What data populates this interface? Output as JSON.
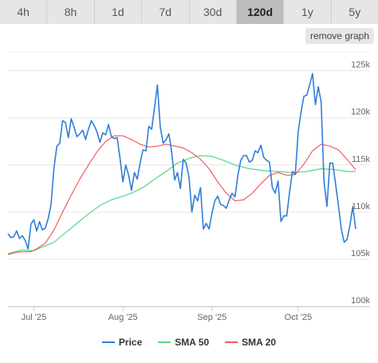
{
  "tabs": [
    {
      "label": "4h",
      "active": false
    },
    {
      "label": "8h",
      "active": false
    },
    {
      "label": "1d",
      "active": false
    },
    {
      "label": "7d",
      "active": false
    },
    {
      "label": "30d",
      "active": false
    },
    {
      "label": "120d",
      "active": true
    },
    {
      "label": "1y",
      "active": false
    },
    {
      "label": "5y",
      "active": false
    }
  ],
  "remove_graph_label": "remove graph",
  "colors": {
    "price": "#2f7ed8",
    "sma50": "#55d68a",
    "sma20": "#f45b5b"
  },
  "chart_data": {
    "type": "line",
    "title": "",
    "xlabel": "",
    "ylabel": "",
    "ylim": [
      100000,
      127000
    ],
    "xlim": [
      "2025-06-22",
      "2025-10-26"
    ],
    "yticks": [
      100000,
      105000,
      110000,
      115000,
      120000,
      125000
    ],
    "ytick_labels": [
      "100k",
      "105k",
      "110k",
      "115k",
      "120k",
      "125k"
    ],
    "xticks": [
      "2025-07-01",
      "2025-08-01",
      "2025-09-01",
      "2025-10-01"
    ],
    "xtick_labels": [
      "Jul '25",
      "Aug '25",
      "Sep '25",
      "Oct '25"
    ],
    "grid": true,
    "legend": "bottom-center",
    "series": [
      {
        "name": "Price",
        "color": "#2f7ed8",
        "points": [
          [
            "2025-06-22",
            107700
          ],
          [
            "2025-06-23",
            107300
          ],
          [
            "2025-06-24",
            107400
          ],
          [
            "2025-06-25",
            108000
          ],
          [
            "2025-06-26",
            107200
          ],
          [
            "2025-06-27",
            107500
          ],
          [
            "2025-06-28",
            107000
          ],
          [
            "2025-06-29",
            106100
          ],
          [
            "2025-06-30",
            108700
          ],
          [
            "2025-07-01",
            109200
          ],
          [
            "2025-07-02",
            108000
          ],
          [
            "2025-07-03",
            109000
          ],
          [
            "2025-07-04",
            108100
          ],
          [
            "2025-07-05",
            108300
          ],
          [
            "2025-07-06",
            109300
          ],
          [
            "2025-07-07",
            110800
          ],
          [
            "2025-07-08",
            114700
          ],
          [
            "2025-07-09",
            117000
          ],
          [
            "2025-07-10",
            117300
          ],
          [
            "2025-07-11",
            119700
          ],
          [
            "2025-07-12",
            119500
          ],
          [
            "2025-07-13",
            117900
          ],
          [
            "2025-07-14",
            119900
          ],
          [
            "2025-07-15",
            119000
          ],
          [
            "2025-07-16",
            118000
          ],
          [
            "2025-07-17",
            118300
          ],
          [
            "2025-07-18",
            118700
          ],
          [
            "2025-07-19",
            117700
          ],
          [
            "2025-07-20",
            118800
          ],
          [
            "2025-07-21",
            119700
          ],
          [
            "2025-07-22",
            119200
          ],
          [
            "2025-07-23",
            118500
          ],
          [
            "2025-07-24",
            117400
          ],
          [
            "2025-07-25",
            118400
          ],
          [
            "2025-07-26",
            118200
          ],
          [
            "2025-07-27",
            119300
          ],
          [
            "2025-07-28",
            118000
          ],
          [
            "2025-07-29",
            117800
          ],
          [
            "2025-07-30",
            117900
          ],
          [
            "2025-07-31",
            115700
          ],
          [
            "2025-08-01",
            113200
          ],
          [
            "2025-08-02",
            115000
          ],
          [
            "2025-08-03",
            113900
          ],
          [
            "2025-08-04",
            112300
          ],
          [
            "2025-08-05",
            114200
          ],
          [
            "2025-08-06",
            113500
          ],
          [
            "2025-08-07",
            115200
          ],
          [
            "2025-08-08",
            116600
          ],
          [
            "2025-08-09",
            116500
          ],
          [
            "2025-08-10",
            119100
          ],
          [
            "2025-08-11",
            118800
          ],
          [
            "2025-08-12",
            121100
          ],
          [
            "2025-08-13",
            123500
          ],
          [
            "2025-08-14",
            119000
          ],
          [
            "2025-08-15",
            117300
          ],
          [
            "2025-08-16",
            117700
          ],
          [
            "2025-08-17",
            118300
          ],
          [
            "2025-08-18",
            116300
          ],
          [
            "2025-08-19",
            113400
          ],
          [
            "2025-08-20",
            114200
          ],
          [
            "2025-08-21",
            112500
          ],
          [
            "2025-08-22",
            115600
          ],
          [
            "2025-08-23",
            115200
          ],
          [
            "2025-08-24",
            113700
          ],
          [
            "2025-08-25",
            110000
          ],
          [
            "2025-08-26",
            111800
          ],
          [
            "2025-08-27",
            111200
          ],
          [
            "2025-08-28",
            112600
          ],
          [
            "2025-08-29",
            108200
          ],
          [
            "2025-08-30",
            108800
          ],
          [
            "2025-08-31",
            108200
          ],
          [
            "2025-09-01",
            109900
          ],
          [
            "2025-09-02",
            111200
          ],
          [
            "2025-09-03",
            111700
          ],
          [
            "2025-09-04",
            110800
          ],
          [
            "2025-09-05",
            110700
          ],
          [
            "2025-09-06",
            110400
          ],
          [
            "2025-09-07",
            111300
          ],
          [
            "2025-09-08",
            112000
          ],
          [
            "2025-09-09",
            111600
          ],
          [
            "2025-09-10",
            113900
          ],
          [
            "2025-09-11",
            115500
          ],
          [
            "2025-09-12",
            116000
          ],
          [
            "2025-09-13",
            116000
          ],
          [
            "2025-09-14",
            115300
          ],
          [
            "2025-09-15",
            115500
          ],
          [
            "2025-09-16",
            116500
          ],
          [
            "2025-09-17",
            116300
          ],
          [
            "2025-09-18",
            117100
          ],
          [
            "2025-09-19",
            115800
          ],
          [
            "2025-09-20",
            115500
          ],
          [
            "2025-09-21",
            115300
          ],
          [
            "2025-09-22",
            112600
          ],
          [
            "2025-09-23",
            112000
          ],
          [
            "2025-09-24",
            113300
          ],
          [
            "2025-09-25",
            109000
          ],
          [
            "2025-09-26",
            109600
          ],
          [
            "2025-09-27",
            109600
          ],
          [
            "2025-09-28",
            112100
          ],
          [
            "2025-09-29",
            114300
          ],
          [
            "2025-09-30",
            114000
          ],
          [
            "2025-10-01",
            118500
          ],
          [
            "2025-10-02",
            120600
          ],
          [
            "2025-10-03",
            122300
          ],
          [
            "2025-10-04",
            122400
          ],
          [
            "2025-10-05",
            123500
          ],
          [
            "2025-10-06",
            124700
          ],
          [
            "2025-10-07",
            121400
          ],
          [
            "2025-10-08",
            123300
          ],
          [
            "2025-10-09",
            121700
          ],
          [
            "2025-10-10",
            113200
          ],
          [
            "2025-10-11",
            110600
          ],
          [
            "2025-10-12",
            115200
          ],
          [
            "2025-10-13",
            115200
          ],
          [
            "2025-10-14",
            113000
          ],
          [
            "2025-10-15",
            110700
          ],
          [
            "2025-10-16",
            108200
          ],
          [
            "2025-10-17",
            106800
          ],
          [
            "2025-10-18",
            107100
          ],
          [
            "2025-10-19",
            108600
          ],
          [
            "2025-10-20",
            110600
          ],
          [
            "2025-10-21",
            108200
          ]
        ]
      },
      {
        "name": "SMA 50",
        "color": "#55d68a",
        "points": [
          [
            "2025-06-22",
            105600
          ],
          [
            "2025-06-27",
            106000
          ],
          [
            "2025-07-01",
            105900
          ],
          [
            "2025-07-04",
            106300
          ],
          [
            "2025-07-08",
            106800
          ],
          [
            "2025-07-12",
            107800
          ],
          [
            "2025-07-16",
            108800
          ],
          [
            "2025-07-20",
            109800
          ],
          [
            "2025-07-24",
            110700
          ],
          [
            "2025-07-28",
            111300
          ],
          [
            "2025-08-01",
            111700
          ],
          [
            "2025-08-04",
            112000
          ],
          [
            "2025-08-08",
            112600
          ],
          [
            "2025-08-12",
            113500
          ],
          [
            "2025-08-16",
            114300
          ],
          [
            "2025-08-20",
            115200
          ],
          [
            "2025-08-24",
            115700
          ],
          [
            "2025-08-28",
            116000
          ],
          [
            "2025-09-01",
            115900
          ],
          [
            "2025-09-05",
            115500
          ],
          [
            "2025-09-09",
            115000
          ],
          [
            "2025-09-14",
            114600
          ],
          [
            "2025-09-19",
            114400
          ],
          [
            "2025-09-24",
            114300
          ],
          [
            "2025-09-29",
            114200
          ],
          [
            "2025-10-04",
            114300
          ],
          [
            "2025-10-09",
            114600
          ],
          [
            "2025-10-14",
            114500
          ],
          [
            "2025-10-18",
            114300
          ],
          [
            "2025-10-21",
            114300
          ]
        ]
      },
      {
        "name": "SMA 20",
        "color": "#f45b5b",
        "points": [
          [
            "2025-06-22",
            105500
          ],
          [
            "2025-06-26",
            105800
          ],
          [
            "2025-06-30",
            105800
          ],
          [
            "2025-07-02",
            106100
          ],
          [
            "2025-07-05",
            106700
          ],
          [
            "2025-07-08",
            108100
          ],
          [
            "2025-07-11",
            110000
          ],
          [
            "2025-07-14",
            111800
          ],
          [
            "2025-07-17",
            113500
          ],
          [
            "2025-07-20",
            115000
          ],
          [
            "2025-07-23",
            116400
          ],
          [
            "2025-07-26",
            117500
          ],
          [
            "2025-07-29",
            118100
          ],
          [
            "2025-08-01",
            118100
          ],
          [
            "2025-08-04",
            117700
          ],
          [
            "2025-08-07",
            117200
          ],
          [
            "2025-08-10",
            116900
          ],
          [
            "2025-08-13",
            117000
          ],
          [
            "2025-08-16",
            117200
          ],
          [
            "2025-08-19",
            117000
          ],
          [
            "2025-08-22",
            116800
          ],
          [
            "2025-08-25",
            116300
          ],
          [
            "2025-08-28",
            115600
          ],
          [
            "2025-08-31",
            114600
          ],
          [
            "2025-09-03",
            113200
          ],
          [
            "2025-09-06",
            112000
          ],
          [
            "2025-09-09",
            111200
          ],
          [
            "2025-09-12",
            111300
          ],
          [
            "2025-09-15",
            112000
          ],
          [
            "2025-09-18",
            113000
          ],
          [
            "2025-09-21",
            113900
          ],
          [
            "2025-09-24",
            114200
          ],
          [
            "2025-09-27",
            113900
          ],
          [
            "2025-09-30",
            114000
          ],
          [
            "2025-10-03",
            115100
          ],
          [
            "2025-10-06",
            116500
          ],
          [
            "2025-10-09",
            117200
          ],
          [
            "2025-10-12",
            117000
          ],
          [
            "2025-10-15",
            116600
          ],
          [
            "2025-10-18",
            115600
          ],
          [
            "2025-10-21",
            114500
          ]
        ]
      }
    ]
  }
}
